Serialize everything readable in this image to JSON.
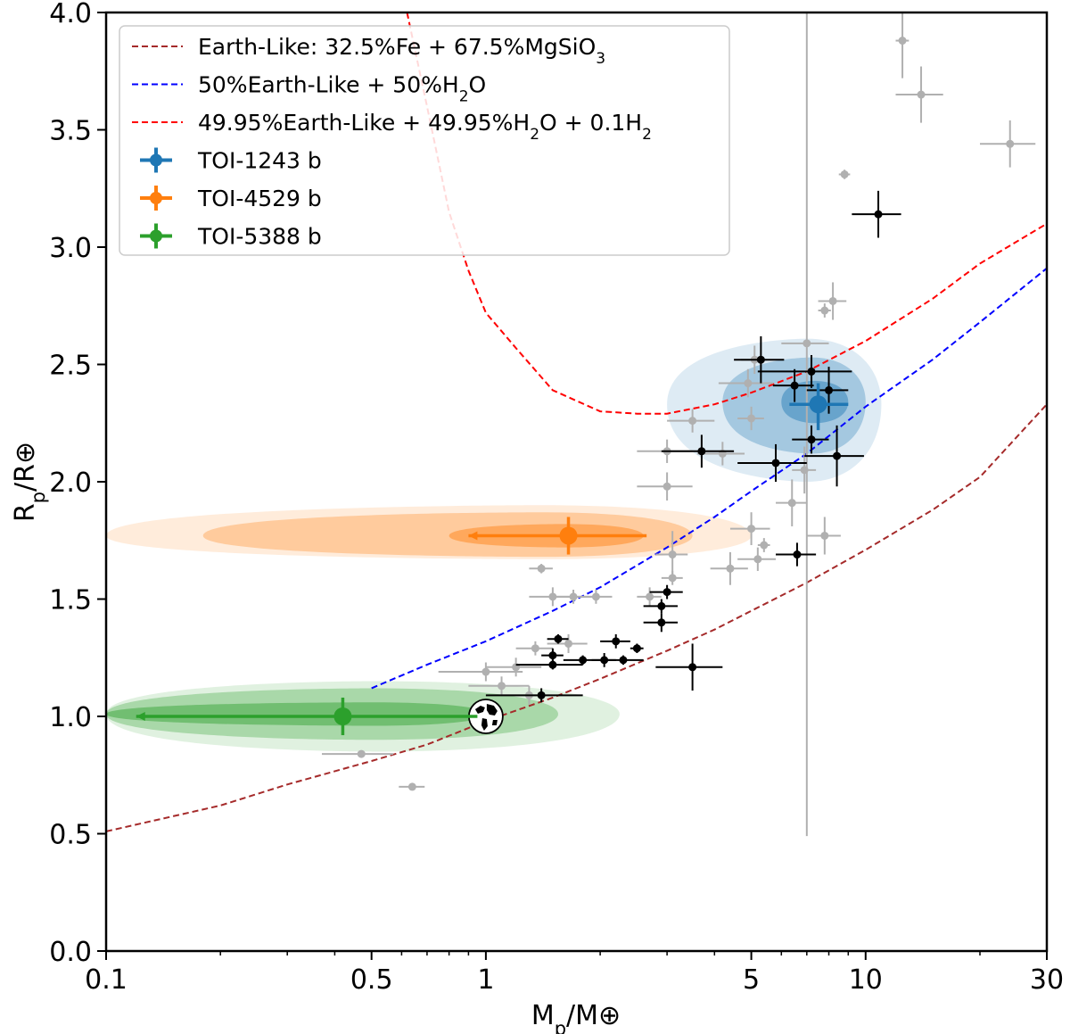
{
  "chart_data": {
    "type": "scatter",
    "x_scale": "log",
    "xlim": [
      0.1,
      30
    ],
    "ylim": [
      0.0,
      4.0
    ],
    "xlabel": "M_p/M_⊕",
    "ylabel": "R_p/R_⊕",
    "xticks": [
      0.1,
      0.5,
      1,
      5,
      10,
      30
    ],
    "xtick_labels": [
      "0.1",
      "0.5",
      "1",
      "5",
      "10",
      "30"
    ],
    "yticks": [
      0.0,
      0.5,
      1.0,
      1.5,
      2.0,
      2.5,
      3.0,
      3.5,
      4.0
    ],
    "ytick_labels": [
      "0.0",
      "0.5",
      "1.0",
      "1.5",
      "2.0",
      "2.5",
      "3.0",
      "3.5",
      "4.0"
    ],
    "legend_position": "top-left",
    "colors": {
      "earth_like": "#a52a2a",
      "water": "#0000ff",
      "hydrogen": "#ff0000",
      "toi1243": "#1f77b4",
      "toi4529": "#ff7f0e",
      "toi5388": "#2ca02c",
      "field_black": "#000000",
      "field_gray": "#b0b0b0"
    },
    "legend": [
      {
        "kind": "line",
        "color": "#a52a2a",
        "label": "Earth-Like: 32.5%Fe + 67.5%MgSiO",
        "sub": "3",
        "tail": ""
      },
      {
        "kind": "line",
        "color": "#0000ff",
        "label": "50%Earth-Like + 50%H",
        "sub": "2",
        "tail": "O"
      },
      {
        "kind": "line",
        "color": "#ff0000",
        "label": "49.95%Earth-Like + 49.95%H",
        "sub": "2",
        "tail": "O + 0.1H",
        "sub2": "2"
      },
      {
        "kind": "marker",
        "color": "#1f77b4",
        "label": "TOI-1243 b"
      },
      {
        "kind": "marker",
        "color": "#ff7f0e",
        "label": "TOI-4529 b"
      },
      {
        "kind": "marker",
        "color": "#2ca02c",
        "label": "TOI-5388 b"
      }
    ],
    "curves": [
      {
        "name": "Earth-Like: 32.5%Fe + 67.5%MgSiO3",
        "color": "#a52a2a",
        "points": [
          [
            0.1,
            0.51
          ],
          [
            0.2,
            0.62
          ],
          [
            0.3,
            0.71
          ],
          [
            0.5,
            0.81
          ],
          [
            0.7,
            0.88
          ],
          [
            1.0,
            0.98
          ],
          [
            1.5,
            1.08
          ],
          [
            2,
            1.16
          ],
          [
            3,
            1.28
          ],
          [
            4,
            1.37
          ],
          [
            5,
            1.45
          ],
          [
            7,
            1.57
          ],
          [
            10,
            1.71
          ],
          [
            15,
            1.88
          ],
          [
            20,
            2.02
          ],
          [
            30,
            2.33
          ]
        ]
      },
      {
        "name": "50%Earth-Like + 50%H2O",
        "color": "#0000ff",
        "points": [
          [
            0.5,
            1.12
          ],
          [
            0.7,
            1.22
          ],
          [
            1.0,
            1.32
          ],
          [
            1.5,
            1.45
          ],
          [
            2,
            1.55
          ],
          [
            3,
            1.72
          ],
          [
            4,
            1.85
          ],
          [
            5,
            1.96
          ],
          [
            7,
            2.12
          ],
          [
            10,
            2.32
          ],
          [
            15,
            2.52
          ],
          [
            20,
            2.68
          ],
          [
            30,
            2.91
          ]
        ]
      },
      {
        "name": "49.95%Earth-Like + 49.95%H2O + 0.1H2",
        "color": "#ff0000",
        "points": [
          [
            0.62,
            4.0
          ],
          [
            0.7,
            3.6
          ],
          [
            0.8,
            3.15
          ],
          [
            0.9,
            2.9
          ],
          [
            1.0,
            2.72
          ],
          [
            1.2,
            2.57
          ],
          [
            1.5,
            2.39
          ],
          [
            2,
            2.3
          ],
          [
            2.5,
            2.29
          ],
          [
            3,
            2.29
          ],
          [
            4,
            2.33
          ],
          [
            5,
            2.38
          ],
          [
            7,
            2.47
          ],
          [
            10,
            2.6
          ],
          [
            15,
            2.78
          ],
          [
            20,
            2.93
          ],
          [
            30,
            3.1
          ]
        ]
      }
    ],
    "highlighted": [
      {
        "name": "TOI-1243 b",
        "color": "#1f77b4",
        "mass": 7.5,
        "radius": 2.33,
        "xerr": [
          6.3,
          9.0
        ],
        "yerr": [
          2.22,
          2.42
        ],
        "upper_limit": false,
        "contours": [
          {
            "cx": 7.0,
            "cy": 2.33,
            "x_lo": 3.0,
            "x_hi": 11.0,
            "y_lo": 2.0,
            "y_hi": 2.61,
            "alpha": 0.15
          },
          {
            "cx": 7.2,
            "cy": 2.34,
            "x_lo": 4.2,
            "x_hi": 10.0,
            "y_lo": 2.12,
            "y_hi": 2.53,
            "alpha": 0.3
          },
          {
            "cx": 7.3,
            "cy": 2.34,
            "x_lo": 6.0,
            "x_hi": 9.0,
            "y_lo": 2.25,
            "y_hi": 2.43,
            "alpha": 0.45
          }
        ]
      },
      {
        "name": "TOI-4529 b",
        "color": "#ff7f0e",
        "mass": 1.65,
        "radius": 1.77,
        "xerr": [
          0.9,
          2.65
        ],
        "yerr": [
          1.69,
          1.85
        ],
        "upper_limit": true,
        "arrow_to": 0.9,
        "contours": [
          {
            "cx": 1.4,
            "cy": 1.77,
            "x_lo": 0.1,
            "x_hi": 5.0,
            "y_lo": 1.67,
            "y_hi": 1.9,
            "alpha": 0.15
          },
          {
            "cx": 1.4,
            "cy": 1.77,
            "x_lo": 0.18,
            "x_hi": 3.5,
            "y_lo": 1.68,
            "y_hi": 1.87,
            "alpha": 0.3
          },
          {
            "cx": 1.6,
            "cy": 1.77,
            "x_lo": 0.8,
            "x_hi": 2.6,
            "y_lo": 1.72,
            "y_hi": 1.82,
            "alpha": 0.45
          }
        ]
      },
      {
        "name": "TOI-5388 b",
        "color": "#2ca02c",
        "mass": 0.42,
        "radius": 1.0,
        "xerr": [
          0.12,
          0.95
        ],
        "yerr": [
          0.92,
          1.08
        ],
        "upper_limit": true,
        "arrow_to": 0.12,
        "contours": [
          {
            "cx": 0.5,
            "cy": 1.01,
            "x_lo": 0.1,
            "x_hi": 2.25,
            "y_lo": 0.85,
            "y_hi": 1.15,
            "alpha": 0.15
          },
          {
            "cx": 0.5,
            "cy": 1.01,
            "x_lo": 0.1,
            "x_hi": 1.55,
            "y_lo": 0.9,
            "y_hi": 1.12,
            "alpha": 0.3
          },
          {
            "cx": 0.5,
            "cy": 1.01,
            "x_lo": 0.1,
            "x_hi": 1.0,
            "y_lo": 0.96,
            "y_hi": 1.06,
            "alpha": 0.45
          }
        ]
      }
    ],
    "earth": {
      "mass": 1.0,
      "radius": 1.0
    },
    "field_black": [
      {
        "m": 5.3,
        "r": 2.52,
        "xe": 0.8,
        "ye": 0.1
      },
      {
        "m": 7.2,
        "r": 2.47,
        "xe": 2.0,
        "ye": 0.07
      },
      {
        "m": 6.5,
        "r": 2.41,
        "xe": 0.8,
        "ye": 0.07
      },
      {
        "m": 8.0,
        "r": 2.39,
        "xe": 1.0,
        "ye": 0.1
      },
      {
        "m": 7.2,
        "r": 2.18,
        "xe": 0.8,
        "ye": 0.06
      },
      {
        "m": 3.7,
        "r": 2.13,
        "xe": 0.8,
        "ye": 0.07
      },
      {
        "m": 5.8,
        "r": 2.08,
        "xe": 1.2,
        "ye": 0.08
      },
      {
        "m": 8.4,
        "r": 2.11,
        "xe": 1.5,
        "ye": 0.13
      },
      {
        "m": 6.6,
        "r": 1.69,
        "xe": 0.8,
        "ye": 0.05
      },
      {
        "m": 10.8,
        "r": 3.14,
        "xe": 1.6,
        "ye": 0.1
      },
      {
        "m": 3.0,
        "r": 1.53,
        "xe": 0.3,
        "ye": 0.03
      },
      {
        "m": 2.9,
        "r": 1.47,
        "xe": 0.3,
        "ye": 0.03
      },
      {
        "m": 2.9,
        "r": 1.4,
        "xe": 0.3,
        "ye": 0.04
      },
      {
        "m": 1.55,
        "r": 1.33,
        "xe": 0.1,
        "ye": 0.02
      },
      {
        "m": 2.2,
        "r": 1.32,
        "xe": 0.2,
        "ye": 0.03
      },
      {
        "m": 2.5,
        "r": 1.29,
        "xe": 0.1,
        "ye": 0.02
      },
      {
        "m": 1.5,
        "r": 1.26,
        "xe": 0.1,
        "ye": 0.03
      },
      {
        "m": 1.5,
        "r": 1.22,
        "xe": 0.3,
        "ye": 0.02
      },
      {
        "m": 1.8,
        "r": 1.24,
        "xe": 0.2,
        "ye": 0.02
      },
      {
        "m": 2.05,
        "r": 1.24,
        "xe": 0.15,
        "ye": 0.03
      },
      {
        "m": 2.3,
        "r": 1.24,
        "xe": 0.3,
        "ye": 0.02
      },
      {
        "m": 3.5,
        "r": 1.21,
        "xe": 0.7,
        "ye": 0.1
      },
      {
        "m": 1.4,
        "r": 1.09,
        "xe": 0.4,
        "ye": 0.03
      }
    ],
    "field_gray": [
      {
        "m": 12.5,
        "r": 3.88,
        "xe": 0.5,
        "ye": 0.16
      },
      {
        "m": 14.0,
        "r": 3.65,
        "xe": 2.0,
        "ye": 0.12
      },
      {
        "m": 24.0,
        "r": 3.44,
        "xe": 4.0,
        "ye": 0.1
      },
      {
        "m": 8.8,
        "r": 3.31,
        "xe": 0.3,
        "ye": 0.02
      },
      {
        "m": 8.2,
        "r": 2.77,
        "xe": 0.7,
        "ye": 0.08
      },
      {
        "m": 7.8,
        "r": 2.73,
        "xe": 0.3,
        "ye": 0.03
      },
      {
        "m": 7.0,
        "r": 2.59,
        "xe": 1.0,
        "ye": 2.1
      },
      {
        "m": 5.1,
        "r": 2.52,
        "xe": 0.4,
        "ye": 0.06
      },
      {
        "m": 4.9,
        "r": 2.42,
        "xe": 0.8,
        "ye": 0.06
      },
      {
        "m": 3.5,
        "r": 2.26,
        "xe": 0.5,
        "ye": 0.05
      },
      {
        "m": 5.0,
        "r": 2.27,
        "xe": 0.4,
        "ye": 0.05
      },
      {
        "m": 3.0,
        "r": 2.13,
        "xe": 0.5,
        "ye": 0.05
      },
      {
        "m": 4.2,
        "r": 2.12,
        "xe": 0.6,
        "ye": 0.05
      },
      {
        "m": 6.9,
        "r": 2.05,
        "xe": 0.5,
        "ye": 0.1
      },
      {
        "m": 3.0,
        "r": 1.98,
        "xe": 0.5,
        "ye": 0.06
      },
      {
        "m": 6.4,
        "r": 1.91,
        "xe": 0.6,
        "ye": 0.1
      },
      {
        "m": 5.0,
        "r": 1.8,
        "xe": 0.6,
        "ye": 0.07
      },
      {
        "m": 7.8,
        "r": 1.77,
        "xe": 0.8,
        "ye": 0.08
      },
      {
        "m": 5.4,
        "r": 1.73,
        "xe": 0.2,
        "ye": 0.03
      },
      {
        "m": 5.2,
        "r": 1.67,
        "xe": 0.6,
        "ye": 0.05
      },
      {
        "m": 4.4,
        "r": 1.63,
        "xe": 0.5,
        "ye": 0.07
      },
      {
        "m": 3.1,
        "r": 1.59,
        "xe": 0.2,
        "ye": 0.03
      },
      {
        "m": 3.1,
        "r": 1.69,
        "xe": 0.3,
        "ye": 0.1
      },
      {
        "m": 1.4,
        "r": 1.63,
        "xe": 0.1,
        "ye": 0.02
      },
      {
        "m": 1.5,
        "r": 1.51,
        "xe": 0.2,
        "ye": 0.04
      },
      {
        "m": 1.7,
        "r": 1.51,
        "xe": 0.2,
        "ye": 0.03
      },
      {
        "m": 1.95,
        "r": 1.51,
        "xe": 0.2,
        "ye": 0.03
      },
      {
        "m": 2.7,
        "r": 1.51,
        "xe": 0.2,
        "ye": 0.04
      },
      {
        "m": 1.65,
        "r": 1.31,
        "xe": 0.2,
        "ye": 0.04
      },
      {
        "m": 1.35,
        "r": 1.29,
        "xe": 0.15,
        "ye": 0.03
      },
      {
        "m": 1.2,
        "r": 1.21,
        "xe": 0.2,
        "ye": 0.04
      },
      {
        "m": 1.0,
        "r": 1.19,
        "xe": 0.25,
        "ye": 0.04
      },
      {
        "m": 1.1,
        "r": 1.13,
        "xe": 0.2,
        "ye": 0.04
      },
      {
        "m": 1.3,
        "r": 1.09,
        "xe": 0.2,
        "ye": 0.04
      },
      {
        "m": 0.47,
        "r": 0.84,
        "xe": 0.1,
        "ye": 0.01
      },
      {
        "m": 0.64,
        "r": 0.7,
        "xe": 0.05,
        "ye": 0.01
      }
    ]
  }
}
